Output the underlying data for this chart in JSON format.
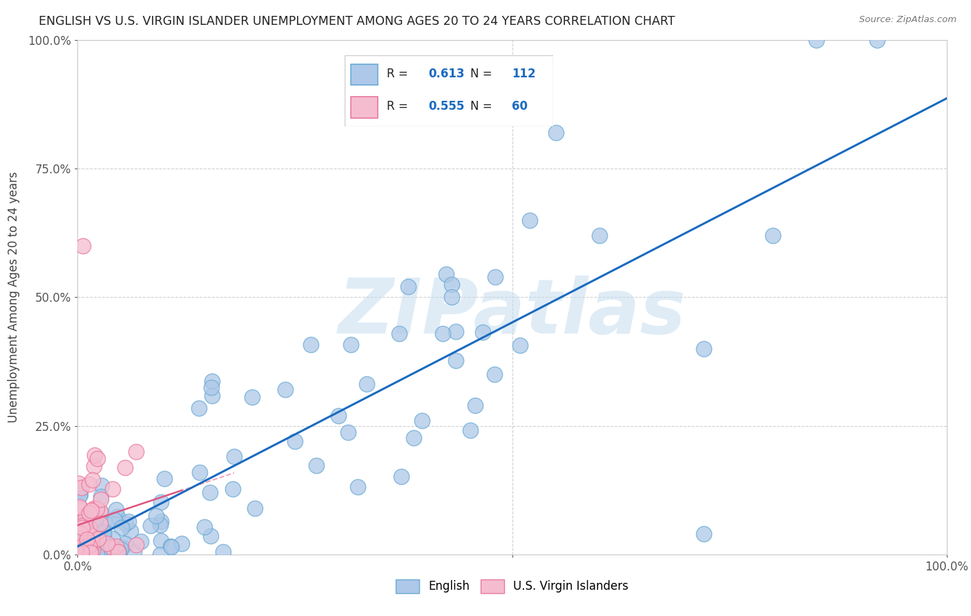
{
  "title": "ENGLISH VS U.S. VIRGIN ISLANDER UNEMPLOYMENT AMONG AGES 20 TO 24 YEARS CORRELATION CHART",
  "source": "Source: ZipAtlas.com",
  "ylabel": "Unemployment Among Ages 20 to 24 years",
  "english_R": 0.613,
  "english_N": 112,
  "vi_R": 0.555,
  "vi_N": 60,
  "english_color": "#adc8e8",
  "english_edge": "#6aaad4",
  "vi_color": "#f5bcd0",
  "vi_edge": "#e8789a",
  "trendline_english_color": "#1a6abf",
  "trendline_vi_color": "#e05580",
  "watermark_color": "#c5ddf0",
  "legend_R_color": "#1a6abf",
  "background_color": "#ffffff",
  "grid_color": "#d0d0d0",
  "tick_color": "#555555",
  "title_color": "#222222",
  "source_color": "#777777"
}
